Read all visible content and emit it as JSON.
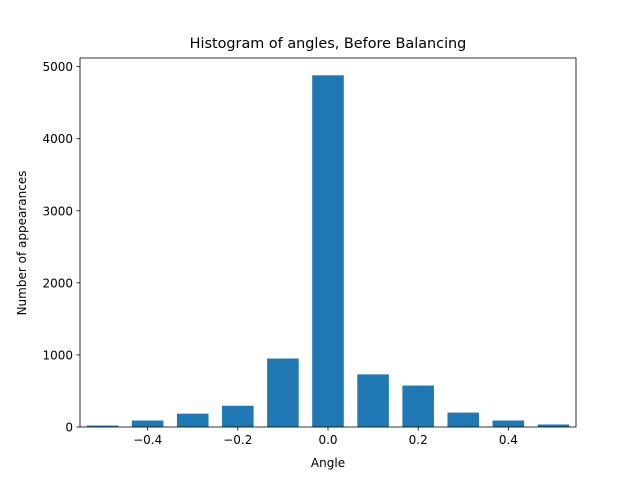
{
  "chart_data": {
    "type": "bar",
    "title": "Histogram of angles, Before Balancing",
    "xlabel": "Angle",
    "ylabel": "Number of appearances",
    "bar_color": "#1f77b4",
    "xlim": [
      -0.55,
      0.55
    ],
    "ylim": [
      0,
      5120
    ],
    "x_ticks": [
      -0.4,
      -0.2,
      0.0,
      0.2,
      0.4
    ],
    "x_tick_labels": [
      "−0.4",
      "−0.2",
      "0.0",
      "0.2",
      "0.4"
    ],
    "y_ticks": [
      0,
      1000,
      2000,
      3000,
      4000,
      5000
    ],
    "y_tick_labels": [
      "0",
      "1000",
      "2000",
      "3000",
      "4000",
      "5000"
    ],
    "bin_width": 0.07,
    "x": [
      -0.5,
      -0.4,
      -0.3,
      -0.2,
      -0.1,
      0.0,
      0.1,
      0.2,
      0.3,
      0.4,
      0.5
    ],
    "values": [
      20,
      90,
      185,
      295,
      950,
      4880,
      730,
      575,
      200,
      90,
      35
    ],
    "grid": false,
    "legend": "none"
  }
}
